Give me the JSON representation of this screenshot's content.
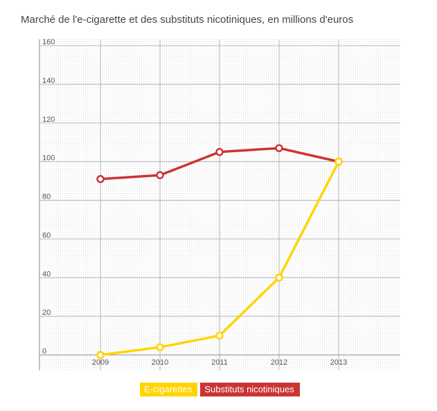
{
  "chart_data": {
    "type": "line",
    "title": "Marché de l'e-cigarette et des substituts nicotiniques, en millions d'euros",
    "x": [
      "2009",
      "2010",
      "2011",
      "2012",
      "2013"
    ],
    "ylim": [
      0,
      160
    ],
    "yticks": [
      0,
      20,
      40,
      60,
      80,
      100,
      120,
      140,
      160
    ],
    "series": [
      {
        "name": "E-cigarettes",
        "color": "#ffd400",
        "values": [
          0,
          4,
          10,
          40,
          100
        ]
      },
      {
        "name": "Substituts nicotiniques",
        "color": "#cc3333",
        "values": [
          91,
          93,
          105,
          107,
          100
        ]
      }
    ],
    "grid": true,
    "legend_position": "bottom"
  }
}
